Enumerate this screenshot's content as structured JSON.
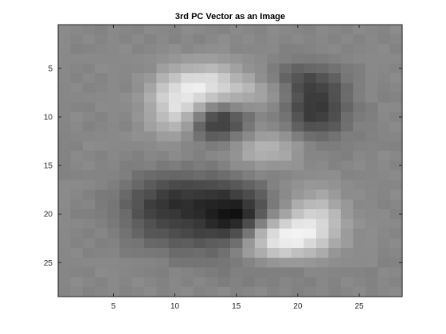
{
  "chart_data": {
    "type": "heatmap",
    "title": "3rd PC Vector as an Image",
    "xlabel": "",
    "ylabel": "",
    "colormap": "gray",
    "xlim": [
      0.5,
      28.5
    ],
    "ylim": [
      0.5,
      28.5
    ],
    "y_reversed": true,
    "grid": false,
    "xticks": [
      5,
      10,
      15,
      20,
      25
    ],
    "yticks": [
      5,
      10,
      15,
      20,
      25
    ],
    "rows": 28,
    "cols": 28,
    "base_level": 0.53,
    "features": [
      {
        "row": 7,
        "col": 12.5,
        "rx": 2.4,
        "ry": 1.7,
        "amp": 0.37
      },
      {
        "row": 9.5,
        "col": 10.0,
        "rx": 1.5,
        "ry": 2.0,
        "amp": 0.27
      },
      {
        "row": 13.2,
        "col": 17.5,
        "rx": 2.1,
        "ry": 1.3,
        "amp": 0.2
      },
      {
        "row": 7.2,
        "col": 17.5,
        "rx": 1.8,
        "ry": 1.4,
        "amp": 0.12
      },
      {
        "row": 22.5,
        "col": 18.5,
        "rx": 2.7,
        "ry": 1.6,
        "amp": 0.46
      },
      {
        "row": 20.0,
        "col": 21.5,
        "rx": 1.6,
        "ry": 1.8,
        "amp": 0.22
      },
      {
        "row": 10.5,
        "col": 13.5,
        "rx": 1.7,
        "ry": 1.5,
        "amp": -0.35
      },
      {
        "row": 9.0,
        "col": 21.5,
        "rx": 1.8,
        "ry": 2.3,
        "amp": -0.33
      },
      {
        "row": 6.0,
        "col": 19.5,
        "rx": 2.3,
        "ry": 1.2,
        "amp": -0.14
      },
      {
        "row": 20.5,
        "col": 15.0,
        "rx": 2.0,
        "ry": 1.9,
        "amp": -0.47
      },
      {
        "row": 19.5,
        "col": 9.5,
        "rx": 2.7,
        "ry": 2.3,
        "amp": -0.3
      },
      {
        "row": 17.5,
        "col": 12.5,
        "rx": 3.0,
        "ry": 1.4,
        "amp": -0.1
      },
      {
        "row": 23.0,
        "col": 12.0,
        "rx": 3.0,
        "ry": 1.4,
        "amp": -0.08
      },
      {
        "row": 25.5,
        "col": 17.5,
        "rx": 3.5,
        "ry": 1.2,
        "amp": -0.07
      }
    ]
  }
}
